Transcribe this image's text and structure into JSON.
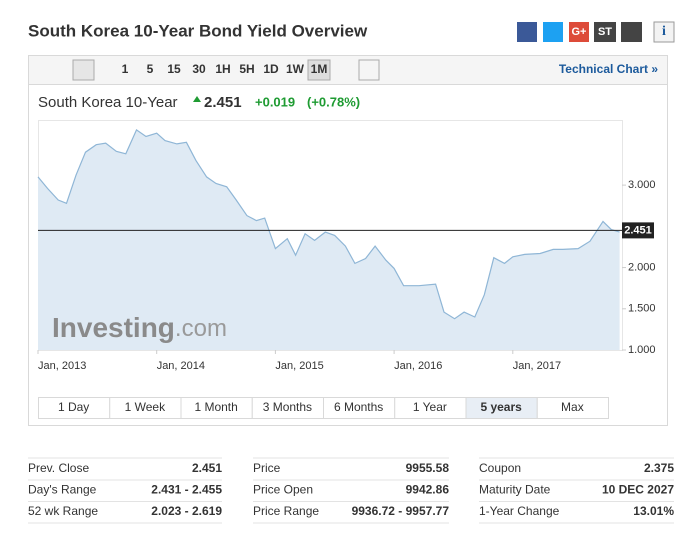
{
  "header": {
    "title": "South Korea 10-Year Bond Yield Overview",
    "share": [
      "G+",
      "ST",
      "i"
    ]
  },
  "toolbar": {
    "intervals": [
      "1",
      "5",
      "15",
      "30",
      "1H",
      "5H",
      "1D",
      "1W",
      "1M"
    ],
    "active": 8,
    "link": "Technical Chart »"
  },
  "quote": {
    "name": "South Korea 10-Year",
    "last": "2.451",
    "change": "+0.019",
    "change_pct": "(+0.78%)"
  },
  "chart_data": {
    "type": "line",
    "color": "#8fb6d6",
    "fill": "#dfeaf4",
    "watermark": [
      "Investing",
      ".com"
    ],
    "x": [
      2013.0,
      2013.08,
      2013.17,
      2013.24,
      2013.32,
      2013.4,
      2013.49,
      2013.57,
      2013.66,
      2013.74,
      2013.83,
      2013.91,
      2014.0,
      2014.07,
      2014.17,
      2014.25,
      2014.33,
      2014.42,
      2014.5,
      2014.59,
      2014.67,
      2014.76,
      2014.84,
      2014.91,
      2015.0,
      2015.1,
      2015.17,
      2015.25,
      2015.33,
      2015.42,
      2015.5,
      2015.59,
      2015.67,
      2015.76,
      2015.84,
      2015.93,
      2016.0,
      2016.08,
      2016.21,
      2016.35,
      2016.42,
      2016.51,
      2016.59,
      2016.68,
      2016.76,
      2016.84,
      2016.93,
      2017.0,
      2017.1,
      2017.23,
      2017.34,
      2017.42,
      2017.55,
      2017.65,
      2017.76,
      2017.83,
      2017.9
    ],
    "values": [
      3.1,
      2.96,
      2.82,
      2.78,
      3.12,
      3.4,
      3.49,
      3.51,
      3.41,
      3.38,
      3.67,
      3.59,
      3.63,
      3.54,
      3.5,
      3.52,
      3.3,
      3.1,
      3.02,
      2.98,
      2.82,
      2.63,
      2.57,
      2.6,
      2.23,
      2.35,
      2.15,
      2.41,
      2.33,
      2.43,
      2.39,
      2.26,
      2.05,
      2.11,
      2.26,
      2.09,
      1.99,
      1.78,
      1.78,
      1.8,
      1.46,
      1.38,
      1.46,
      1.4,
      1.67,
      2.12,
      2.05,
      2.13,
      2.16,
      2.17,
      2.22,
      2.22,
      2.23,
      2.32,
      2.56,
      2.46,
      2.43
    ],
    "current_value": 2.451,
    "xlim": [
      2013.0,
      2017.92
    ],
    "ylim": [
      1.0,
      3.79
    ],
    "xticks": [
      {
        "value": 2013,
        "label": "Jan, 2013"
      },
      {
        "value": 2014,
        "label": "Jan, 2014"
      },
      {
        "value": 2015,
        "label": "Jan, 2015"
      },
      {
        "value": 2016,
        "label": "Jan, 2016"
      },
      {
        "value": 2017,
        "label": "Jan, 2017"
      }
    ],
    "yticks": [
      {
        "value": 1,
        "label": "1.000"
      },
      {
        "value": 1.5,
        "label": "1.500"
      },
      {
        "value": 2,
        "label": "2.000"
      },
      {
        "value": 3,
        "label": "3.000"
      }
    ]
  },
  "ranges": {
    "buttons": [
      "1 Day",
      "1 Week",
      "1 Month",
      "3 Months",
      "6 Months",
      "1 Year",
      "5 years",
      "Max"
    ],
    "active": 6
  },
  "stats": [
    [
      [
        "Prev. Close",
        "2.451"
      ],
      [
        "Day's Range",
        "2.431 - 2.455"
      ],
      [
        "52 wk Range",
        "2.023 - 2.619"
      ]
    ],
    [
      [
        "Price",
        "9955.58"
      ],
      [
        "Price Open",
        "9942.86"
      ],
      [
        "Price Range",
        "9936.72 - 9957.77"
      ]
    ],
    [
      [
        "Coupon",
        "2.375"
      ],
      [
        "Maturity Date",
        "10 DEC 2027"
      ],
      [
        "1-Year Change",
        "13.01%"
      ]
    ]
  ]
}
